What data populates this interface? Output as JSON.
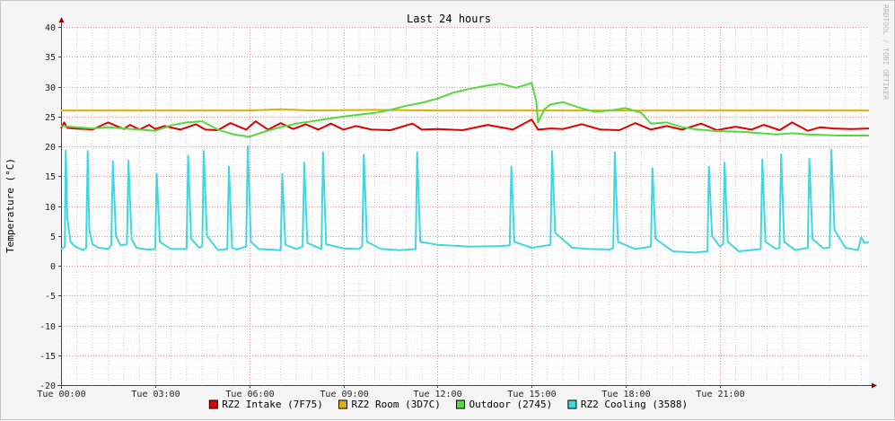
{
  "chart_data": {
    "type": "line",
    "title": "Last 24 hours",
    "ylabel": "Temperature (°C)",
    "xlabel": "",
    "watermark": "RRDTOOL / TOBI OETIKER",
    "ylim": [
      -20,
      40
    ],
    "yticks": [
      40,
      35,
      30,
      25,
      20,
      15,
      10,
      5,
      0,
      -5,
      -10,
      -15,
      -20
    ],
    "xlim": [
      0,
      25.75
    ],
    "xticks": [
      {
        "hour": 0,
        "label": "Tue 00:00"
      },
      {
        "hour": 3,
        "label": "Tue 03:00"
      },
      {
        "hour": 6,
        "label": "Tue 06:00"
      },
      {
        "hour": 9,
        "label": "Tue 09:00"
      },
      {
        "hour": 12,
        "label": "Tue 12:00"
      },
      {
        "hour": 15,
        "label": "Tue 15:00"
      },
      {
        "hour": 18,
        "label": "Tue 18:00"
      },
      {
        "hour": 21,
        "label": "Tue 21:00"
      }
    ],
    "grid": true,
    "legend_position": "bottom",
    "series": [
      {
        "name": "RZ2 Intake (7F75)",
        "color": "#e00000",
        "x": [
          0,
          0.1,
          0.2,
          0.4,
          0.8,
          1.0,
          1.5,
          2.0,
          2.2,
          2.5,
          2.8,
          3.0,
          3.3,
          3.8,
          4.3,
          4.6,
          5.0,
          5.4,
          5.9,
          6.2,
          6.6,
          7.0,
          7.4,
          7.8,
          8.2,
          8.6,
          9.0,
          9.4,
          9.9,
          10.5,
          11.2,
          11.5,
          12.0,
          12.8,
          13.6,
          14.4,
          15.0,
          15.2,
          15.6,
          16.0,
          16.6,
          17.2,
          17.8,
          18.3,
          18.8,
          19.3,
          19.8,
          20.4,
          20.9,
          21.5,
          22.0,
          22.4,
          22.9,
          23.3,
          23.8,
          24.2,
          24.6,
          25.2,
          25.75
        ],
        "y": [
          23.0,
          24.0,
          23.1,
          23.0,
          22.9,
          22.8,
          24.0,
          22.9,
          23.6,
          22.8,
          23.6,
          22.9,
          23.4,
          22.8,
          23.7,
          22.8,
          22.7,
          23.9,
          22.8,
          24.2,
          22.8,
          23.9,
          22.9,
          23.7,
          22.8,
          23.8,
          22.8,
          23.4,
          22.8,
          22.7,
          23.8,
          22.8,
          22.9,
          22.7,
          23.6,
          22.8,
          24.5,
          22.8,
          23.0,
          22.9,
          23.7,
          22.8,
          22.7,
          23.9,
          22.8,
          23.4,
          22.8,
          23.8,
          22.7,
          23.3,
          22.8,
          23.6,
          22.7,
          24.0,
          22.6,
          23.2,
          23.0,
          22.9,
          23.0
        ]
      },
      {
        "name": "RZ2 Room (3D7C)",
        "color": "#e0b000",
        "x": [
          0,
          2,
          4,
          6,
          7,
          8,
          10,
          12,
          14,
          16,
          18,
          20,
          22,
          24,
          25.75
        ],
        "y": [
          26.0,
          26.0,
          26.0,
          26.0,
          26.2,
          26.0,
          26.1,
          26.0,
          26.0,
          26.0,
          26.0,
          26.0,
          26.0,
          26.0,
          26.0
        ]
      },
      {
        "name": "Outdoor (2745)",
        "color": "#55d840",
        "x": [
          0,
          0.5,
          1,
          1.5,
          2,
          2.5,
          3,
          3.5,
          4,
          4.5,
          5,
          5.5,
          6,
          6.5,
          7,
          7.5,
          8,
          8.5,
          9,
          9.5,
          10,
          10.5,
          11,
          11.5,
          12,
          12.5,
          13,
          13.5,
          14,
          14.5,
          15,
          15.15,
          15.2,
          15.4,
          15.6,
          16,
          16.5,
          17,
          17.5,
          18,
          18.5,
          18.8,
          19.3,
          19.8,
          20.3,
          20.8,
          21.3,
          21.8,
          22.3,
          22.8,
          23.3,
          23.8,
          24.3,
          24.8,
          25.3,
          25.75
        ],
        "y": [
          23.4,
          23.2,
          23.0,
          23.2,
          23.0,
          22.8,
          22.6,
          23.5,
          24.0,
          24.2,
          22.8,
          22.0,
          21.6,
          22.5,
          23.2,
          23.8,
          24.2,
          24.6,
          25.0,
          25.3,
          25.6,
          26.1,
          26.8,
          27.3,
          28.0,
          29.0,
          29.6,
          30.1,
          30.5,
          29.8,
          30.6,
          27.5,
          24.0,
          26.2,
          27.0,
          27.4,
          26.5,
          25.8,
          26.0,
          26.4,
          25.6,
          23.8,
          24.0,
          23.2,
          22.8,
          22.6,
          22.5,
          22.4,
          22.2,
          22.0,
          22.2,
          22.0,
          21.9,
          21.8,
          21.8,
          21.8
        ]
      },
      {
        "name": "RZ2 Cooling (3588)",
        "color": "#40d8e0",
        "x": [
          0,
          0.12,
          0.15,
          0.2,
          0.3,
          0.45,
          0.7,
          0.8,
          0.85,
          0.9,
          1.0,
          1.2,
          1.5,
          1.6,
          1.65,
          1.75,
          1.9,
          2.1,
          2.15,
          2.25,
          2.4,
          2.6,
          2.8,
          3.0,
          3.05,
          3.15,
          3.5,
          4.0,
          4.05,
          4.15,
          4.4,
          4.5,
          4.55,
          4.65,
          5.0,
          5.3,
          5.35,
          5.45,
          5.6,
          5.9,
          5.95,
          6.05,
          6.3,
          7.0,
          7.05,
          7.15,
          7.5,
          7.7,
          7.75,
          7.85,
          8.3,
          8.35,
          8.45,
          9.0,
          9.5,
          9.6,
          9.65,
          9.75,
          10.2,
          10.8,
          11.3,
          11.35,
          11.45,
          12.0,
          13.0,
          14.0,
          14.3,
          14.35,
          14.45,
          15.0,
          15.6,
          15.65,
          15.75,
          16.3,
          16.8,
          17.5,
          17.6,
          17.65,
          17.75,
          18.3,
          18.8,
          18.85,
          18.95,
          19.5,
          20.2,
          20.6,
          20.65,
          20.75,
          21.0,
          21.1,
          21.15,
          21.25,
          21.6,
          22.3,
          22.35,
          22.45,
          22.8,
          22.9,
          22.95,
          23.05,
          23.4,
          23.8,
          23.85,
          23.95,
          24.3,
          24.5,
          24.55,
          24.65,
          25.0,
          25.4,
          25.5,
          25.6,
          25.75
        ],
        "y": [
          2.8,
          3.2,
          19.3,
          8.0,
          4.0,
          3.2,
          2.6,
          3.0,
          19.2,
          6.0,
          3.6,
          3.0,
          2.8,
          3.4,
          17.5,
          5.0,
          3.4,
          3.6,
          17.6,
          4.5,
          3.0,
          2.8,
          2.7,
          2.8,
          15.4,
          4.0,
          2.8,
          2.8,
          18.4,
          4.5,
          3.0,
          3.3,
          19.2,
          5.0,
          2.6,
          2.8,
          16.6,
          3.0,
          2.7,
          3.2,
          20.0,
          4.0,
          2.8,
          2.6,
          15.4,
          3.5,
          2.8,
          3.2,
          17.3,
          3.8,
          2.8,
          19.0,
          3.6,
          2.9,
          2.8,
          3.3,
          18.6,
          4.0,
          2.8,
          2.6,
          2.8,
          19.0,
          4.0,
          3.5,
          3.2,
          3.3,
          3.4,
          16.6,
          4.0,
          3.0,
          3.5,
          19.2,
          5.5,
          3.0,
          2.8,
          2.7,
          3.0,
          19.0,
          4.0,
          2.8,
          3.2,
          16.3,
          4.5,
          2.4,
          2.2,
          2.4,
          16.6,
          5.0,
          3.2,
          3.6,
          17.3,
          4.0,
          2.4,
          2.8,
          17.8,
          4.0,
          2.8,
          3.0,
          18.6,
          4.0,
          2.6,
          3.0,
          17.9,
          4.5,
          2.9,
          3.1,
          19.4,
          6.0,
          3.0,
          2.6,
          4.8,
          3.8,
          4.0
        ]
      }
    ]
  }
}
